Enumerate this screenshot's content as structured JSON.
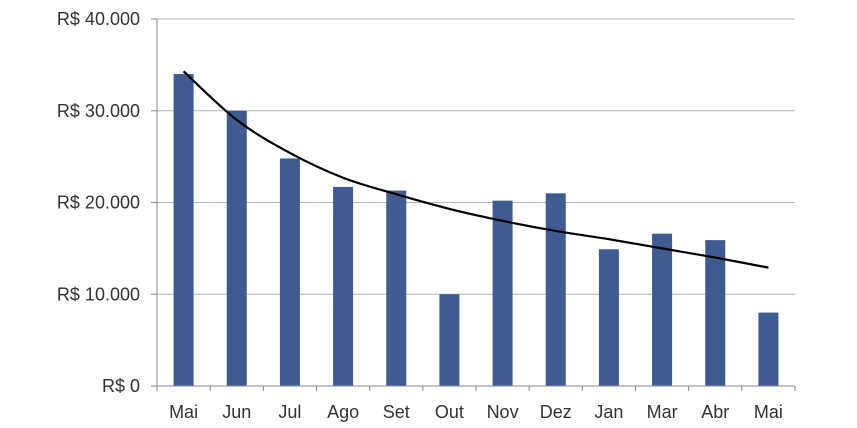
{
  "chart_data": {
    "type": "bar",
    "categories": [
      "Mai",
      "Jun",
      "Jul",
      "Ago",
      "Set",
      "Out",
      "Nov",
      "Dez",
      "Jan",
      "Mar",
      "Abr",
      "Mai"
    ],
    "series": [
      {
        "values": [
          34000,
          30000,
          24800,
          21700,
          21300,
          10000,
          20200,
          21000,
          14900,
          16600,
          15900,
          8000
        ],
        "color": "#3f5b92"
      }
    ],
    "trendline": {
      "type": "logarithmic",
      "color": "#000000",
      "values": [
        34300,
        29000,
        25400,
        22700,
        20900,
        19300,
        18000,
        16900,
        16000,
        15000,
        14000,
        12900
      ]
    },
    "ylim": [
      0,
      40000
    ],
    "yticks": [
      0,
      10000,
      20000,
      30000,
      40000
    ],
    "ytick_labels": [
      "R$ 0",
      "R$ 10.000",
      "R$ 20.000",
      "R$ 30.000",
      "R$ 40.000"
    ],
    "grid": true,
    "title": "",
    "xlabel": "",
    "ylabel": ""
  }
}
